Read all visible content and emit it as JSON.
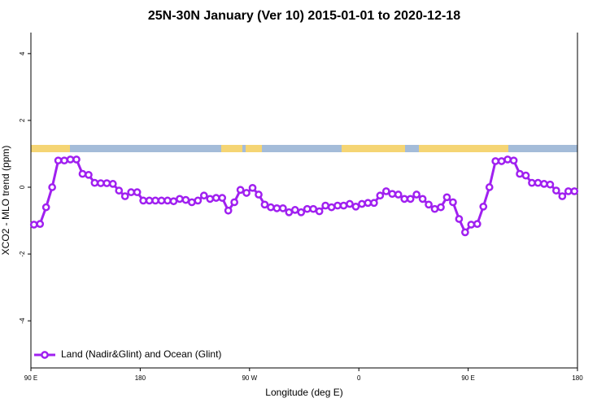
{
  "chart_data": {
    "type": "line",
    "title": "25N-30N January (Ver 10)   2015-01-01 to 2020-12-18",
    "x_label": "Longitude (deg E)",
    "y_label": "XCO2 - MLO trend (ppm)",
    "xlim": [
      90,
      540
    ],
    "ylim": [
      -5.41,
      4.63
    ],
    "xticks": [
      {
        "value": 90,
        "label": "90 E"
      },
      {
        "value": 180,
        "label": "180"
      },
      {
        "value": 270,
        "label": "90 W"
      },
      {
        "value": 360,
        "label": "0"
      },
      {
        "value": 450,
        "label": "90 E"
      },
      {
        "value": 540,
        "label": "180"
      }
    ],
    "yticks": [
      -4,
      -2,
      0,
      2,
      4
    ],
    "legend_position": "bottom-left",
    "x": [
      92.5,
      97.5,
      102.5,
      107.5,
      112.5,
      117.5,
      122.5,
      127.5,
      132.5,
      137.5,
      142.5,
      147.5,
      152.5,
      157.5,
      162.5,
      167.5,
      172.5,
      177.5,
      182.5,
      187.5,
      192.5,
      197.5,
      202.5,
      207.5,
      212.5,
      217.5,
      222.5,
      227.5,
      232.5,
      237.5,
      242.5,
      247.5,
      252.5,
      257.5,
      262.5,
      267.5,
      272.5,
      277.5,
      282.5,
      287.5,
      292.5,
      297.5,
      302.5,
      307.5,
      312.5,
      317.5,
      322.5,
      327.5,
      332.5,
      337.5,
      342.5,
      347.5,
      352.5,
      357.5,
      362.5,
      367.5,
      372.5,
      377.5,
      382.5,
      387.5,
      392.5,
      397.5,
      402.5,
      407.5,
      412.5,
      417.5,
      422.5,
      427.5,
      432.5,
      437.5,
      442.5,
      447.5,
      452.5,
      457.5,
      462.5,
      467.5,
      472.5,
      477.5,
      482.5,
      487.5,
      492.5,
      497.5,
      502.5,
      507.5,
      512.5,
      517.5,
      522.5,
      527.5,
      532.5,
      537.5
    ],
    "series": [
      {
        "name": "Land (Nadir&Glint) and Ocean (Glint)",
        "color": "#a020f0",
        "values": [
          -1.12,
          -1.1,
          -0.6,
          0,
          0.8,
          0.8,
          0.83,
          0.83,
          0.4,
          0.37,
          0.13,
          0.12,
          0.12,
          0.1,
          -0.1,
          -0.27,
          -0.15,
          -0.15,
          -0.4,
          -0.4,
          -0.4,
          -0.4,
          -0.4,
          -0.42,
          -0.35,
          -0.38,
          -0.45,
          -0.4,
          -0.25,
          -0.35,
          -0.32,
          -0.32,
          -0.7,
          -0.45,
          -0.08,
          -0.17,
          -0.02,
          -0.22,
          -0.52,
          -0.6,
          -0.63,
          -0.63,
          -0.75,
          -0.68,
          -0.75,
          -0.65,
          -0.65,
          -0.72,
          -0.55,
          -0.6,
          -0.55,
          -0.55,
          -0.5,
          -0.58,
          -0.5,
          -0.47,
          -0.47,
          -0.25,
          -0.12,
          -0.2,
          -0.22,
          -0.35,
          -0.35,
          -0.22,
          -0.35,
          -0.52,
          -0.65,
          -0.6,
          -0.3,
          -0.45,
          -0.95,
          -1.35,
          -1.12,
          -1.1,
          -0.58,
          0,
          0.78,
          0.78,
          0.83,
          0.8,
          0.4,
          0.35,
          0.13,
          0.13,
          0.1,
          0.08,
          -0.1,
          -0.27,
          -0.12,
          -0.12
        ]
      }
    ]
  }
}
